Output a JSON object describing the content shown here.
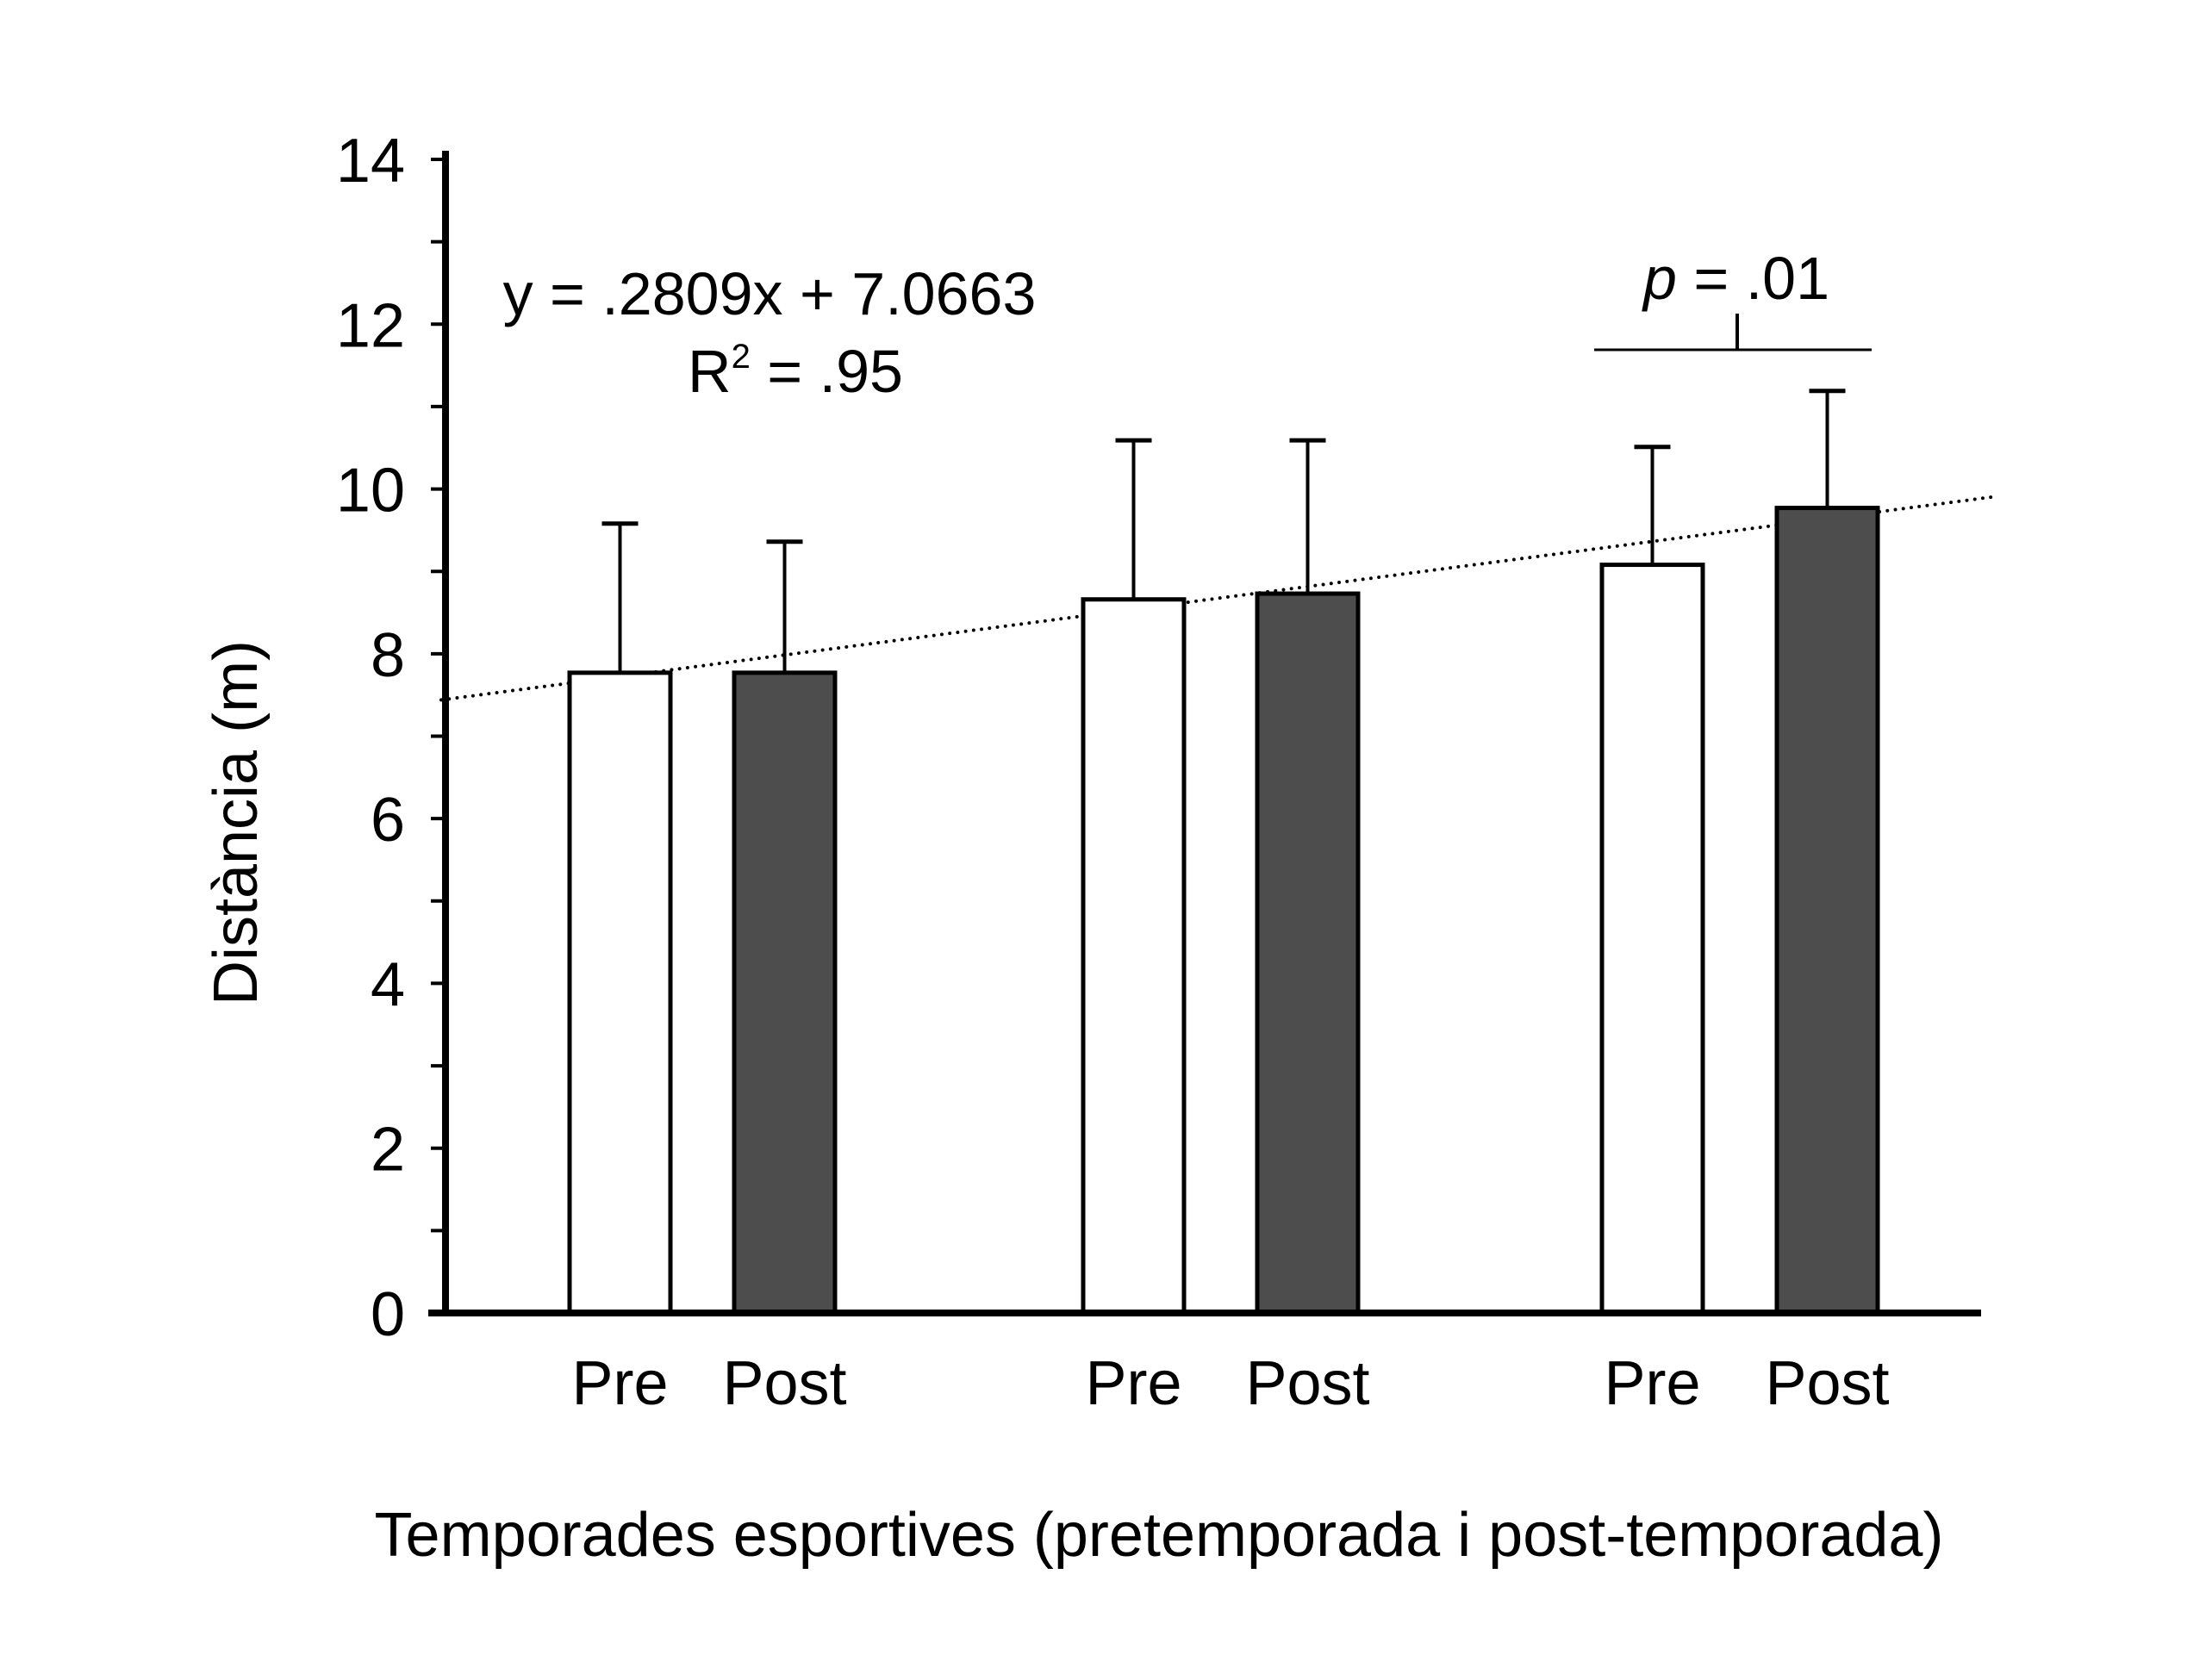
{
  "chart_data": {
    "type": "bar",
    "title": "",
    "xlabel": "Temporades esportives (pretemporada i post-temporada)",
    "ylabel": "Distància (m)",
    "ylim": [
      0,
      14
    ],
    "yticks": [
      0,
      2,
      4,
      6,
      8,
      10,
      12,
      14
    ],
    "yminor_step": 1,
    "grid": false,
    "legend": null,
    "categories": [
      "Pre",
      "Post",
      "Pre",
      "Post",
      "Pre",
      "Post"
    ],
    "groups": [
      {
        "bars": [
          {
            "label": "Pre",
            "value": 7.77,
            "error": 1.81,
            "fill": "#ffffff"
          },
          {
            "label": "Post",
            "value": 7.77,
            "error": 1.59,
            "fill": "#4d4d4d"
          }
        ]
      },
      {
        "bars": [
          {
            "label": "Pre",
            "value": 8.66,
            "error": 1.93,
            "fill": "#ffffff"
          },
          {
            "label": "Post",
            "value": 8.73,
            "error": 1.86,
            "fill": "#4d4d4d"
          }
        ]
      },
      {
        "bars": [
          {
            "label": "Pre",
            "value": 9.08,
            "error": 1.43,
            "fill": "#ffffff"
          },
          {
            "label": "Post",
            "value": 9.77,
            "error": 1.42,
            "fill": "#4d4d4d"
          }
        ]
      }
    ],
    "trendline": {
      "style": "dotted",
      "equation": "y = .2809x + 7.0663",
      "r2_prefix": "R",
      "r2_sup": "2",
      "r2_suffix": " = .95",
      "start_value": 7.44,
      "end_value": 9.91
    },
    "annotations": [
      {
        "type": "significance",
        "group": 3,
        "prefix": "p",
        "text": " = .01"
      }
    ]
  }
}
